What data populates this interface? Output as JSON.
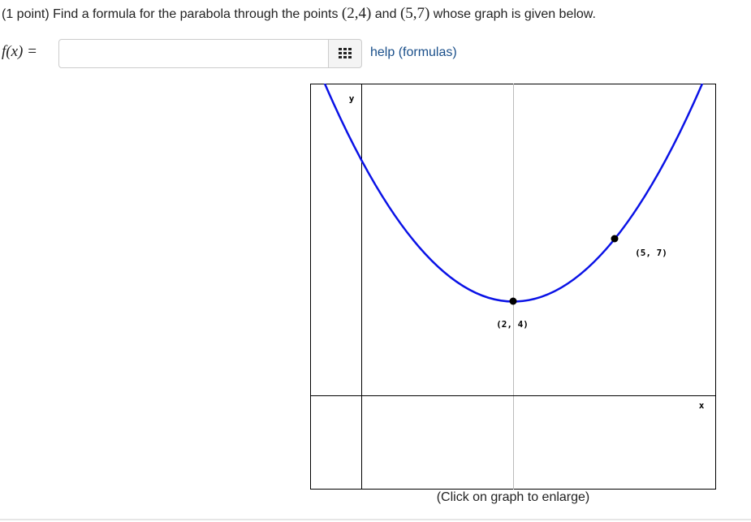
{
  "problem": {
    "text_before": "(1 point) Find a formula for the parabola through the points",
    "point_a": "(2,4)",
    "joiner": "and",
    "point_b": "(5,7)",
    "text_after": "whose graph is given below."
  },
  "answer": {
    "label": "f(x) =",
    "help_link": "help (formulas)"
  },
  "graph": {
    "y_axis_label": "y",
    "x_axis_label": "x",
    "point_a_label": "(2, 4)",
    "point_b_label": "(5, 7)",
    "caption": "(Click on graph to enlarge)"
  }
}
